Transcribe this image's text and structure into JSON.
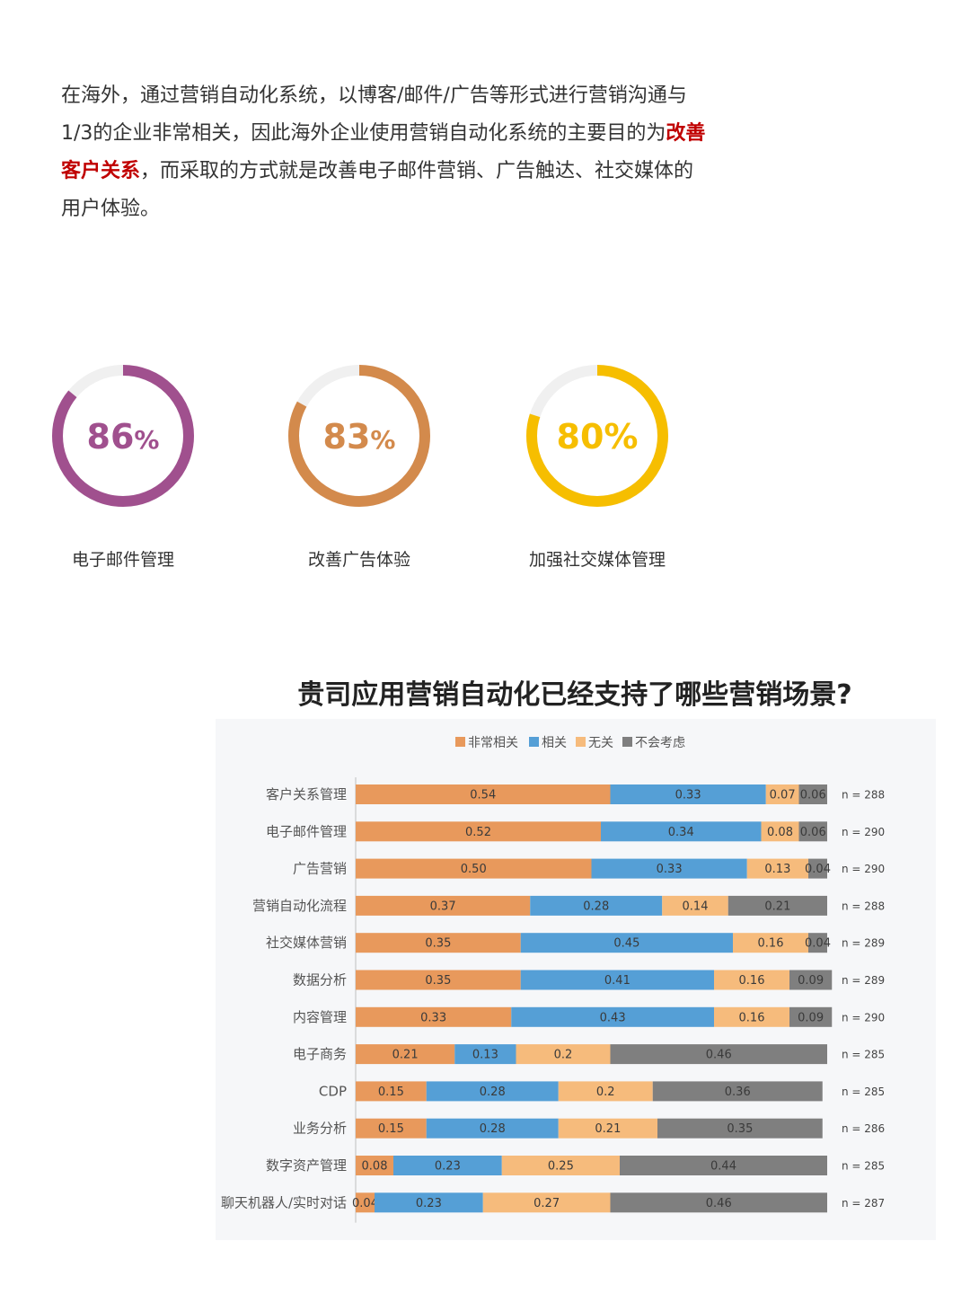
{
  "intro": {
    "part1": "在海外，通过营销自动化系统，以博客/邮件/广告等形式进行营销沟通与1/3的企业非常相关，因此海外企业使用营销自动化系统的主要目的为",
    "highlight": "改善客户关系",
    "part2": "，而采取的方式就是改善电子邮件营销、广告触达、社交媒体的用户体验。"
  },
  "donuts": [
    {
      "value": 86,
      "number": "86",
      "unit": "%",
      "label": "电子邮件管理",
      "color": "#a0508e"
    },
    {
      "value": 83,
      "number": "83",
      "unit": "%",
      "label": "改善广告体验",
      "color": "#d38a4c"
    },
    {
      "value": 80,
      "number": "80",
      "unit": "%",
      "label": "加强社交媒体管理",
      "color": "#f6be00"
    }
  ],
  "colors": {
    "track": "#f0f0f0"
  },
  "chart_data": {
    "type": "bar",
    "orientation": "horizontal-stacked",
    "title": "贵司应用营销自动化已经支持了哪些营销场景?",
    "legend_position": "top",
    "categories": [
      "客户关系管理",
      "电子邮件管理",
      "广告营销",
      "营销自动化流程",
      "社交媒体营销",
      "数据分析",
      "内容管理",
      "电子商务",
      "CDP",
      "业务分析",
      "数字资产管理",
      "聊天机器人/实时对话"
    ],
    "n_labels": [
      "n = 288",
      "n = 290",
      "n = 290",
      "n = 288",
      "n = 289",
      "n = 289",
      "n = 290",
      "n = 285",
      "n = 285",
      "n = 286",
      "n = 285",
      "n = 287"
    ],
    "series": [
      {
        "name": "非常相关",
        "color": "#e8995c",
        "values": [
          0.54,
          0.52,
          0.5,
          0.37,
          0.35,
          0.35,
          0.33,
          0.21,
          0.15,
          0.15,
          0.08,
          0.04
        ],
        "labels": [
          "0.54",
          "0.52",
          "0.50",
          "0.37",
          "0.35",
          "0.35",
          "0.33",
          "0.21",
          "0.15",
          "0.15",
          "0.08",
          "0.04"
        ]
      },
      {
        "name": "相关",
        "color": "#559fd6",
        "values": [
          0.33,
          0.34,
          0.33,
          0.28,
          0.45,
          0.41,
          0.43,
          0.13,
          0.28,
          0.28,
          0.23,
          0.23
        ],
        "labels": [
          "0.33",
          "0.34",
          "0.33",
          "0.28",
          "0.45",
          "0.41",
          "0.43",
          "0.13",
          "0.28",
          "0.28",
          "0.23",
          "0.23"
        ]
      },
      {
        "name": "无关",
        "color": "#f6bb7c",
        "values": [
          0.07,
          0.08,
          0.13,
          0.14,
          0.16,
          0.16,
          0.16,
          0.2,
          0.2,
          0.21,
          0.25,
          0.27
        ],
        "labels": [
          "0.07",
          "0.08",
          "0.13",
          "0.14",
          "0.16",
          "0.16",
          "0.16",
          "0.2",
          "0.2",
          "0.21",
          "0.25",
          "0.27"
        ]
      },
      {
        "name": "不会考虑",
        "color": "#7f7f7f",
        "values": [
          0.06,
          0.06,
          0.04,
          0.21,
          0.04,
          0.09,
          0.09,
          0.46,
          0.36,
          0.35,
          0.44,
          0.46
        ],
        "labels": [
          "0.06",
          "0.06",
          "0.04",
          "0.21",
          "0.04",
          "0.09",
          "0.09",
          "0.46",
          "0.36",
          "0.35",
          "0.44",
          "0.46"
        ]
      }
    ]
  }
}
